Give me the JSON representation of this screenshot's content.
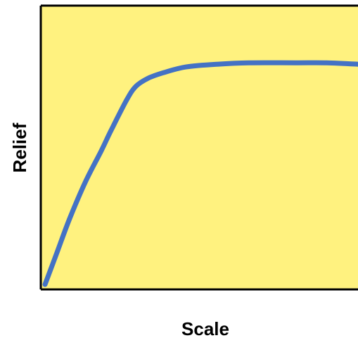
{
  "chart_data": {
    "type": "line",
    "title": "",
    "xlabel": "Scale",
    "ylabel": "Relief",
    "xlim": [
      0,
      1
    ],
    "ylim": [
      0,
      1
    ],
    "grid": false,
    "legend": "none",
    "colors": {
      "plot_background": "#FFF27F",
      "line": "#4472C4",
      "frame": "#000000"
    },
    "series": [
      {
        "values": [
          [
            0.0,
            0.0
          ],
          [
            0.04,
            0.12
          ],
          [
            0.08,
            0.24
          ],
          [
            0.13,
            0.37
          ],
          [
            0.18,
            0.48
          ],
          [
            0.21,
            0.55
          ],
          [
            0.26,
            0.66
          ],
          [
            0.29,
            0.71
          ],
          [
            0.33,
            0.74
          ],
          [
            0.38,
            0.76
          ],
          [
            0.45,
            0.78
          ],
          [
            0.55,
            0.79
          ],
          [
            0.65,
            0.795
          ],
          [
            0.8,
            0.795
          ],
          [
            0.9,
            0.795
          ],
          [
            1.0,
            0.79
          ]
        ]
      }
    ]
  }
}
